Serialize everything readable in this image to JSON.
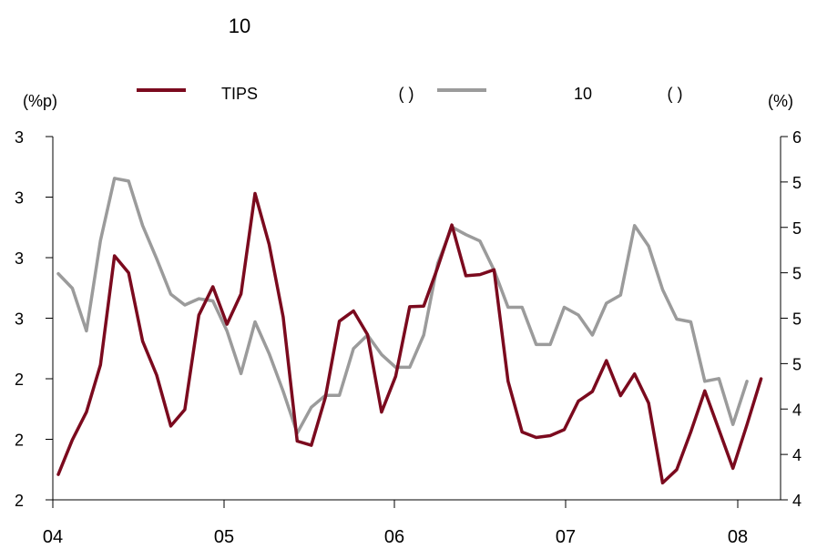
{
  "chart_data": {
    "type": "line",
    "title": "10",
    "left_unit": "(%p)",
    "right_unit": "(%)",
    "legend": {
      "placement": "top",
      "entries": [
        {
          "text": "TIPS",
          "suffix": "( )"
        },
        {
          "text": "10",
          "suffix": "( )"
        }
      ]
    },
    "x_ticks": [
      "04",
      "05",
      "06",
      "07",
      "08"
    ],
    "x_range": [
      0,
      51
    ],
    "y_left": {
      "ticks": [
        "2",
        "2",
        "2",
        "3",
        "3",
        "3",
        "3"
      ],
      "range": [
        0,
        6
      ]
    },
    "y_right": {
      "ticks": [
        "4",
        "4",
        "4",
        "5",
        "5",
        "5",
        "5",
        "5",
        "6"
      ],
      "range": [
        0,
        8
      ]
    },
    "grid": false,
    "series": [
      {
        "color": "#7b0a1e",
        "axis": "left",
        "values": [
          0.42,
          0.99,
          1.45,
          2.23,
          4.03,
          3.75,
          2.62,
          2.06,
          1.22,
          1.49,
          3.05,
          3.52,
          2.9,
          3.4,
          5.06,
          4.22,
          3.02,
          0.97,
          0.9,
          1.69,
          2.95,
          3.12,
          2.73,
          1.45,
          2.04,
          3.19,
          3.2,
          3.84,
          4.54,
          3.7,
          3.72,
          3.8,
          1.96,
          1.12,
          1.03,
          1.06,
          1.16,
          1.63,
          1.79,
          2.3,
          1.72,
          2.08,
          1.6,
          0.28,
          0.5,
          1.12,
          1.8,
          1.16,
          0.52,
          1.24,
          2.0
        ]
      },
      {
        "color": "#9b9b9b",
        "axis": "right",
        "values": [
          4.98,
          4.66,
          3.72,
          5.71,
          7.08,
          7.02,
          6.04,
          5.31,
          4.53,
          4.29,
          4.43,
          4.38,
          3.72,
          2.78,
          3.92,
          3.22,
          2.39,
          1.47,
          2.04,
          2.3,
          2.3,
          3.33,
          3.63,
          3.2,
          2.92,
          2.92,
          3.63,
          5.21,
          6.01,
          5.84,
          5.7,
          5.06,
          4.24,
          4.24,
          3.42,
          3.42,
          4.24,
          4.07,
          3.63,
          4.33,
          4.51,
          6.04,
          5.59,
          4.63,
          3.98,
          3.92,
          2.61,
          2.67,
          1.66,
          2.61
        ]
      }
    ]
  }
}
